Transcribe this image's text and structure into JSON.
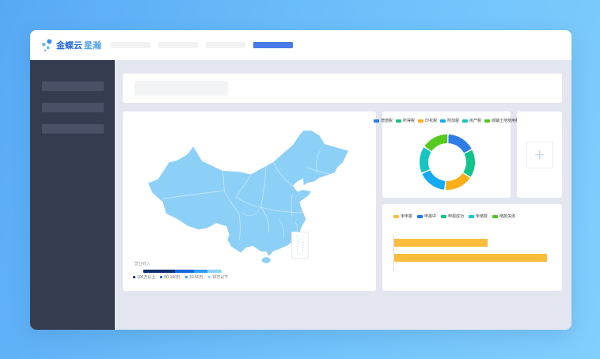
{
  "brand": {
    "primary": "金蝶云",
    "secondary": "星瀚"
  },
  "colors": {
    "nav_active": "#4A7BE8",
    "skeleton": "#F2F2F2",
    "sidebar_bg": "#363C50",
    "sidebar_item": "#4A5065",
    "content_bg": "#E3E6EF",
    "map_fill": "#8CD0F8",
    "bar_color": "#FBBD3B",
    "plus_color": "#C5DCF4"
  },
  "plus_card": {
    "icon": "+"
  },
  "chart_data": [
    {
      "id": "region-revenue-map",
      "type": "map",
      "region": "china",
      "legend_title": "营业收入",
      "legend_position": "bottom-left",
      "classes": [
        {
          "label": "100万以上",
          "color": "#0B2F6F",
          "width_pct": 40
        },
        {
          "label": "50-100万",
          "color": "#1565D8",
          "width_pct": 25
        },
        {
          "label": "10-50万",
          "color": "#2E9BF5",
          "width_pct": 17
        },
        {
          "label": "10万以下",
          "color": "#8DD2F9",
          "width_pct": 18
        }
      ]
    },
    {
      "id": "tax-type-donut",
      "type": "pie",
      "legend_position": "top",
      "series": [
        {
          "name": "增值税",
          "value": 17,
          "color": "#2E7CE8"
        },
        {
          "name": "所得税",
          "value": 17,
          "color": "#12C48B"
        },
        {
          "name": "印花税",
          "value": 17,
          "color": "#FBAE15"
        },
        {
          "name": "附加税",
          "value": 17,
          "color": "#14AAF5"
        },
        {
          "name": "房产税",
          "value": 16,
          "color": "#16C5C0"
        },
        {
          "name": "城镇土地使用税",
          "value": 16,
          "color": "#56CA1E"
        }
      ]
    },
    {
      "id": "filing-status-bars",
      "type": "bar",
      "orientation": "horizontal",
      "xmax": 100,
      "bar_color": "#FBBD3B",
      "legend_position": "top",
      "legend": [
        {
          "name": "未申报",
          "color": "#FBBD3B"
        },
        {
          "name": "申报中",
          "color": "#1677FF"
        },
        {
          "name": "申报成功",
          "color": "#12C48B"
        },
        {
          "name": "未缴款",
          "color": "#14C9C9"
        },
        {
          "name": "缴款失败",
          "color": "#52C41A"
        }
      ],
      "bars": [
        {
          "value": 61
        },
        {
          "value": 100
        }
      ]
    }
  ]
}
